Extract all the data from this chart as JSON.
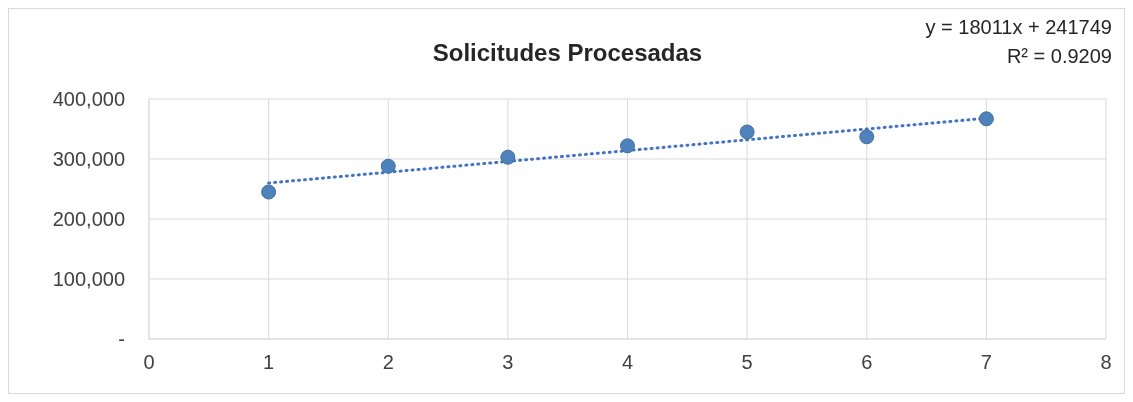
{
  "chart_data": {
    "type": "scatter",
    "title": "Solicitudes Procesadas",
    "annotations": [
      "y = 18011x + 241749",
      "R² = 0.9209"
    ],
    "x": [
      1,
      2,
      3,
      4,
      5,
      6,
      7
    ],
    "series": [
      {
        "color": "#4f81bd",
        "values": [
          245000,
          288000,
          303000,
          322000,
          345000,
          337000,
          367000
        ]
      },
      {
        "type": "line",
        "color": "#4472c4",
        "x": [
          1,
          7
        ],
        "values": [
          260000,
          368000
        ],
        "line_style": "dotted",
        "marker": "none"
      }
    ],
    "xlim": [
      0,
      8
    ],
    "xticks": [
      0,
      1,
      2,
      3,
      4,
      5,
      6,
      7,
      8
    ],
    "ylim": [
      0,
      400000
    ],
    "yticks": [
      {
        "value": 0,
        "label": "-"
      },
      {
        "value": 100000,
        "label": "100,000"
      },
      {
        "value": 200000,
        "label": "200,000"
      },
      {
        "value": 300000,
        "label": "300,000"
      },
      {
        "value": 400000,
        "label": "400,000"
      }
    ],
    "grid": true,
    "legend": false,
    "marker": "circle"
  }
}
